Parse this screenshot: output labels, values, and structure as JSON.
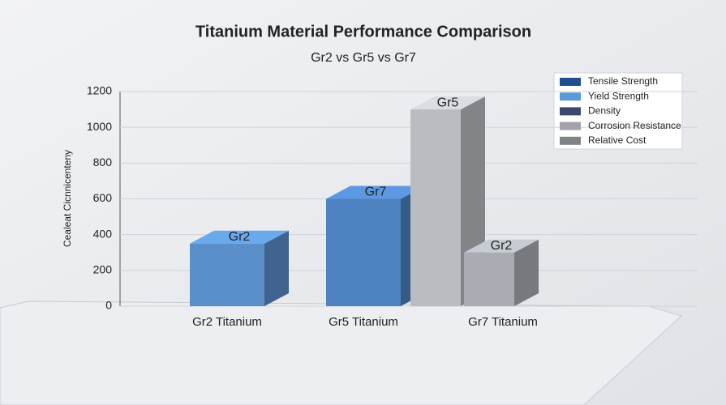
{
  "chart_data": {
    "type": "bar3d",
    "title": "Titanium Material Performance Comparison",
    "subtitle": "Gr2 vs Gr5 vs Gr7",
    "y_label": "Cealeat Cicnnicenteny",
    "categories": [
      "Gr2 Titanium",
      "Gr5 Titanium",
      "Gr7 Titanium"
    ],
    "bars": [
      {
        "label": "Gr2",
        "category": "Gr2 Titanium",
        "value": 350,
        "color": "#5b8fc9"
      },
      {
        "label": "Gr7",
        "category": "Gr5 Titanium",
        "value": 600,
        "color": "#4f82c0"
      },
      {
        "label": "Gr5",
        "category": "Gr7 Titanium",
        "value": 1100,
        "color": "#b9bcc1"
      },
      {
        "label": "Gr2",
        "category": "Gr7 Titanium",
        "value": 300,
        "color": "#a9adb3"
      }
    ],
    "ylim": [
      0,
      1200
    ],
    "yticks": [
      0,
      200,
      400,
      600,
      800,
      1000,
      1200
    ],
    "grid": true,
    "legend": [
      {
        "name": "Tensile Strength",
        "color": "#1f4e8c"
      },
      {
        "name": "Yield Strength",
        "color": "#5b9bd5"
      },
      {
        "name": "Density",
        "color": "#3b4a6b"
      },
      {
        "name": "Corrosion Resistance",
        "color": "#a0a4a8"
      },
      {
        "name": "Relative Cost",
        "color": "#7f8488"
      }
    ]
  }
}
